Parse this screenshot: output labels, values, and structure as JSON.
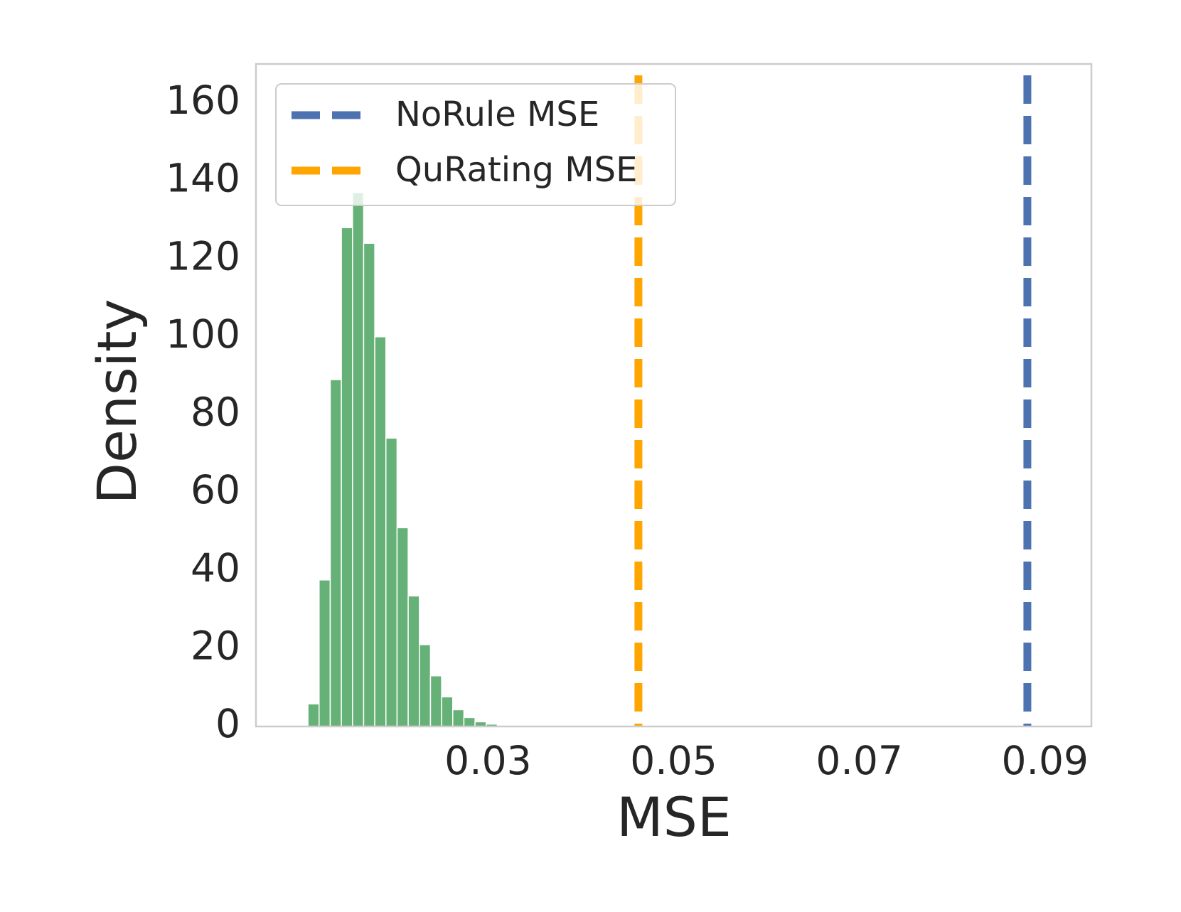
{
  "chart_data": {
    "type": "histogram",
    "xlabel": "MSE",
    "ylabel": "Density",
    "bins": [
      0.0106,
      0.0118,
      0.013,
      0.0142,
      0.0154,
      0.0166,
      0.0178,
      0.019,
      0.0202,
      0.0214,
      0.0226,
      0.0238,
      0.025,
      0.0262,
      0.0274,
      0.0286,
      0.0298,
      0.031,
      0.0322,
      0.0334
    ],
    "values": [
      5.8,
      37.6,
      89,
      128,
      137,
      124,
      100,
      74,
      51,
      33.5,
      21,
      13,
      7.6,
      4.3,
      2.3,
      1.2,
      0.6,
      0.2,
      0.1
    ],
    "color": "#55a868",
    "lines": [
      {
        "name": "NoRule MSE",
        "color": "#4c72b0",
        "x": 0.0881
      },
      {
        "name": "QuRating MSE",
        "color": "#ffa500",
        "x": 0.0462
      }
    ],
    "xlim": [
      0.005,
      0.095
    ],
    "ylim": [
      0,
      170
    ],
    "xticks": [
      0.03,
      0.05,
      0.07,
      0.09
    ],
    "yticks": [
      0,
      20,
      40,
      60,
      80,
      100,
      120,
      140,
      160
    ],
    "grid": false,
    "legend": "upper left"
  }
}
